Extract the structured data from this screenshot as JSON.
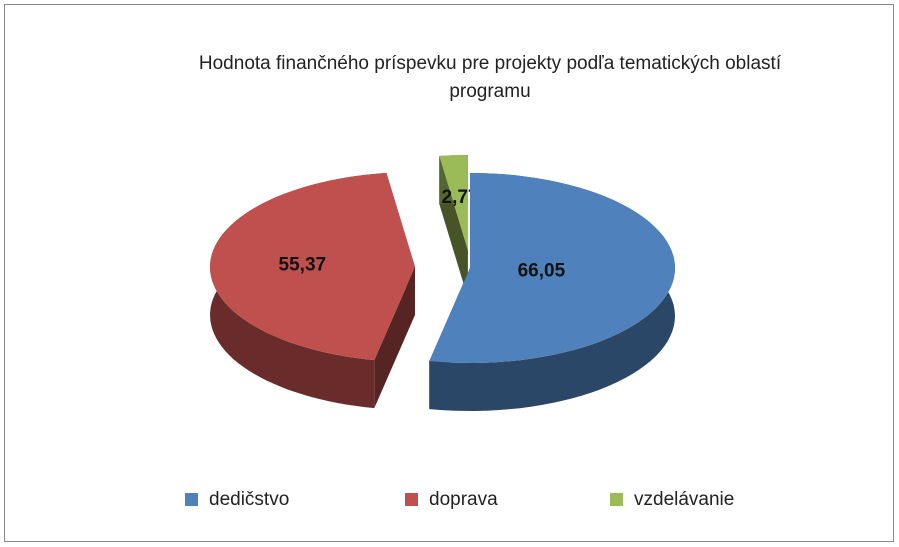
{
  "chart_data": {
    "type": "pie",
    "title": "Hodnota finančného príspevku pre projekty podľa tematických oblastí programu",
    "categories": [
      "dedičstvo",
      "doprava",
      "vzdelávanie"
    ],
    "values": [
      66.05,
      55.37,
      2.77
    ],
    "value_labels": [
      "66,05",
      "55,37",
      "2,77"
    ],
    "colors": [
      "#4f81bd",
      "#c0504d",
      "#9bbb59"
    ],
    "legend": "bottom"
  }
}
